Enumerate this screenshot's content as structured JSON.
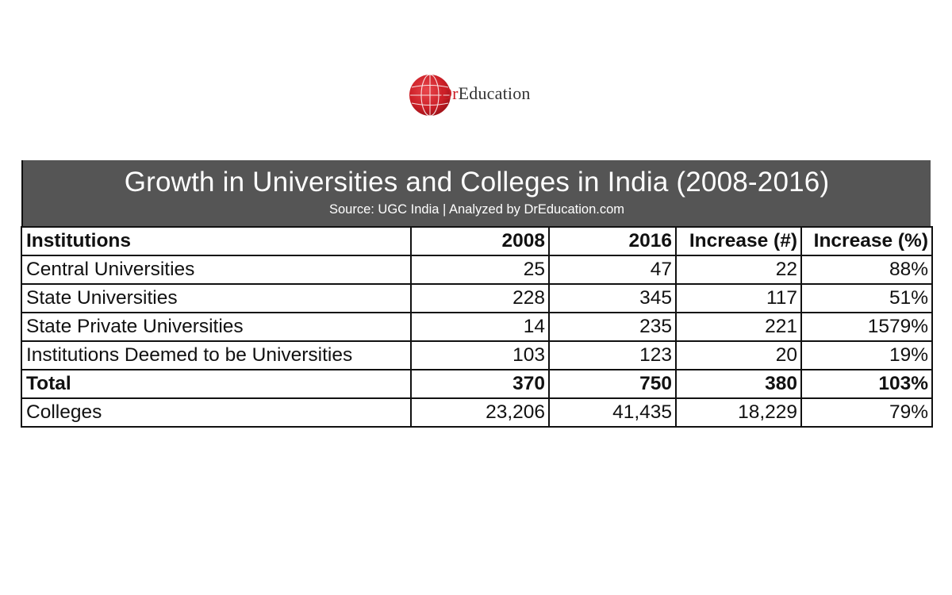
{
  "logo": {
    "brand_prefix": "Dr",
    "brand_suffix": "Education",
    "colors": {
      "red": "#cc1f27",
      "text": "#333333"
    }
  },
  "banner": {
    "title": "Growth in Universities and Colleges in India (2008-2016)",
    "subtitle": "Source: UGC India | Analyzed by DrEducation.com",
    "background": "#555555"
  },
  "chart_data": {
    "type": "table",
    "title": "Growth in Universities and Colleges in India (2008-2016)",
    "subtitle": "Source: UGC India | Analyzed by DrEducation.com",
    "columns": [
      "Institutions",
      "2008",
      "2016",
      "Increase (#)",
      "Increase (%)"
    ],
    "rows": [
      {
        "label": "Central Universities",
        "cells": [
          "25",
          "47",
          "22",
          "88%"
        ],
        "bold": false
      },
      {
        "label": "State Universities",
        "cells": [
          "228",
          "345",
          "117",
          "51%"
        ],
        "bold": false
      },
      {
        "label": "State Private Universities",
        "cells": [
          "14",
          "235",
          "221",
          "1579%"
        ],
        "bold": false
      },
      {
        "label": "Institutions Deemed to be Universities",
        "cells": [
          "103",
          "123",
          "20",
          "19%"
        ],
        "bold": false
      },
      {
        "label": "Total",
        "cells": [
          "370",
          "750",
          "380",
          "103%"
        ],
        "bold": true
      },
      {
        "label": "Colleges",
        "cells": [
          "23,206",
          "41,435",
          "18,229",
          "79%"
        ],
        "bold": false
      }
    ]
  }
}
